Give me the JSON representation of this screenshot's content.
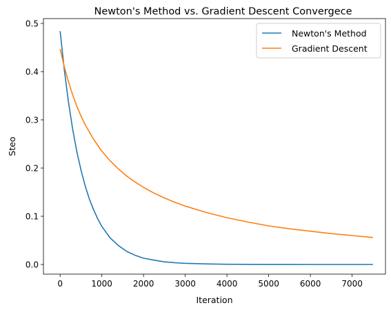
{
  "chart_data": {
    "type": "line",
    "title": "Newton's Method vs. Gradient Descent Convergece",
    "xlabel": "Iteration",
    "ylabel": "Steo",
    "xlim": [
      -400,
      7800
    ],
    "ylim": [
      -0.02,
      0.51
    ],
    "xticks": [
      0,
      1000,
      2000,
      3000,
      4000,
      5000,
      6000,
      7000
    ],
    "xtick_labels": [
      "0",
      "1000",
      "2000",
      "3000",
      "4000",
      "5000",
      "6000",
      "7000"
    ],
    "yticks": [
      0.0,
      0.1,
      0.2,
      0.3,
      0.4,
      0.5
    ],
    "ytick_labels": [
      "0.0",
      "0.1",
      "0.2",
      "0.3",
      "0.4",
      "0.5"
    ],
    "grid": false,
    "legend_position": "top-right",
    "series": [
      {
        "name": "Newton's Method",
        "color": "#1f77b4",
        "x": [
          0,
          100,
          200,
          300,
          400,
          500,
          600,
          700,
          800,
          900,
          1000,
          1200,
          1400,
          1600,
          1800,
          2000,
          2250,
          2500,
          2750,
          3000,
          3500,
          4000,
          4500,
          5000,
          5500,
          6000,
          6500,
          7000,
          7500
        ],
        "y": [
          0.484,
          0.404,
          0.337,
          0.281,
          0.234,
          0.196,
          0.163,
          0.136,
          0.114,
          0.095,
          0.079,
          0.055,
          0.039,
          0.027,
          0.019,
          0.013,
          0.009,
          0.0055,
          0.0036,
          0.0024,
          0.0011,
          0.0005,
          0.0002,
          0.0001,
          0.0001,
          0.0,
          0.0,
          0.0,
          0.0
        ]
      },
      {
        "name": "Gradient Descent",
        "color": "#ff7f0e",
        "x": [
          0,
          100,
          200,
          300,
          400,
          500,
          600,
          800,
          1000,
          1200,
          1400,
          1600,
          1800,
          2000,
          2250,
          2500,
          2750,
          3000,
          3500,
          4000,
          4500,
          5000,
          5500,
          6000,
          6500,
          7000,
          7500
        ],
        "y": [
          0.447,
          0.41,
          0.379,
          0.352,
          0.328,
          0.308,
          0.29,
          0.26,
          0.235,
          0.215,
          0.198,
          0.183,
          0.171,
          0.16,
          0.148,
          0.138,
          0.129,
          0.121,
          0.108,
          0.097,
          0.088,
          0.08,
          0.074,
          0.069,
          0.064,
          0.06,
          0.056
        ]
      }
    ]
  }
}
